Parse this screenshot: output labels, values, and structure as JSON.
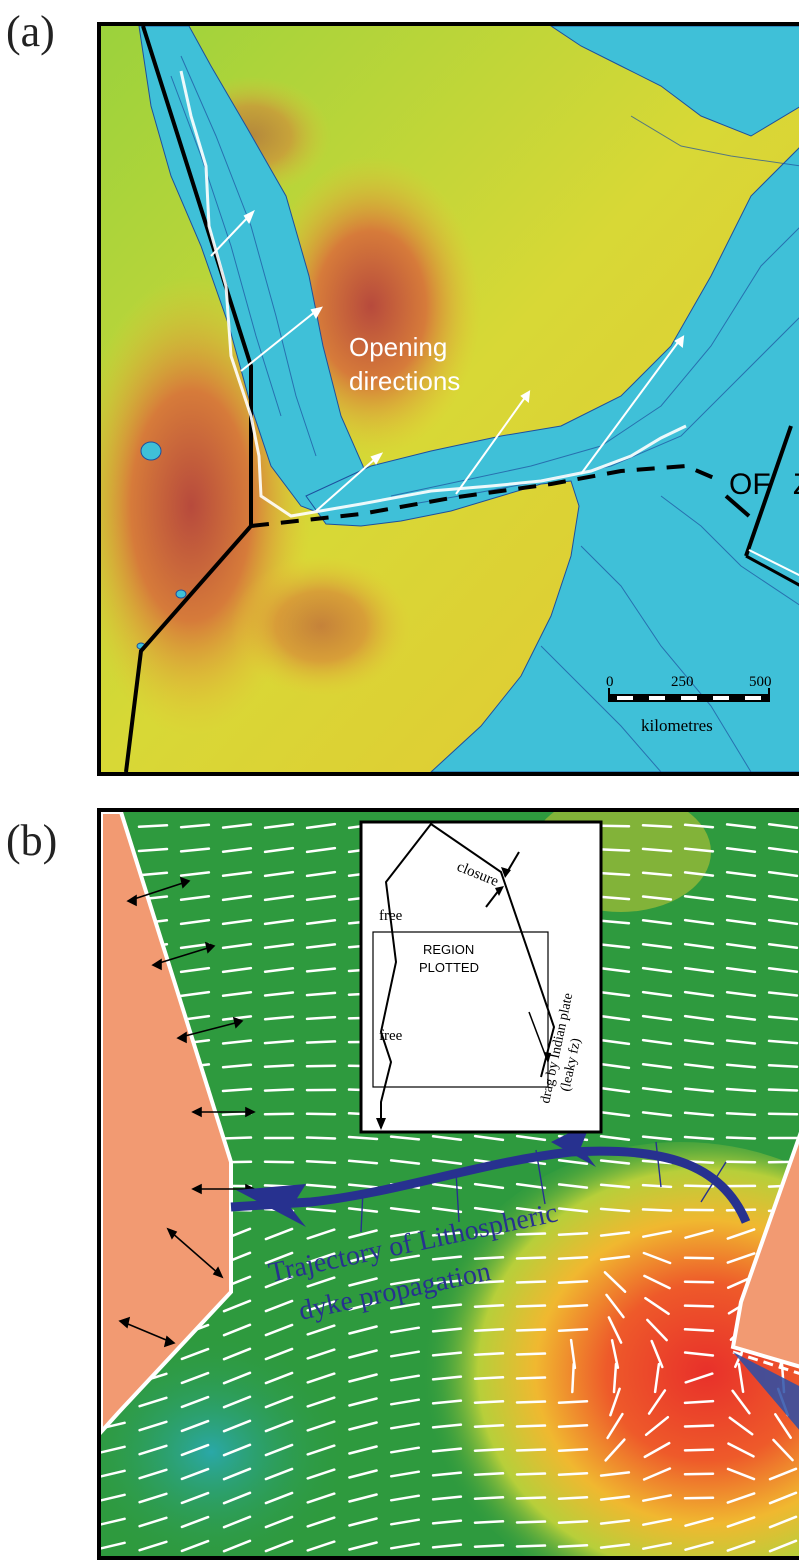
{
  "panel_a": {
    "label": "(a)",
    "annotation": [
      "Opening",
      "directions"
    ],
    "fault_label": "OF",
    "fault_label_cut": "Z",
    "scale_bar": {
      "ticks": [
        "0",
        "250",
        "500"
      ],
      "unit": "kilometres"
    }
  },
  "panel_b": {
    "label": "(b)",
    "inset": {
      "closure_label": "closure",
      "free_label_1": "free",
      "free_label_2": "free",
      "region_label_1": "REGION",
      "region_label_2": "PLOTTED",
      "drag_label_1": "drag by Indian plate",
      "drag_label_2": "(leaky fz)"
    },
    "trajectory_label": [
      "Trajectory of Lithospheric",
      "dyke propagation"
    ]
  },
  "colors": {
    "ocean": "#3fc0d8",
    "land_low": "#7fcf3a",
    "land_mid": "#f2d23a",
    "land_high": "#c6503a",
    "stress_green": "#2e9a3e",
    "stress_red": "#e8302a",
    "plate_salmon": "#f29a72",
    "trajectory_blue": "#27318f"
  }
}
